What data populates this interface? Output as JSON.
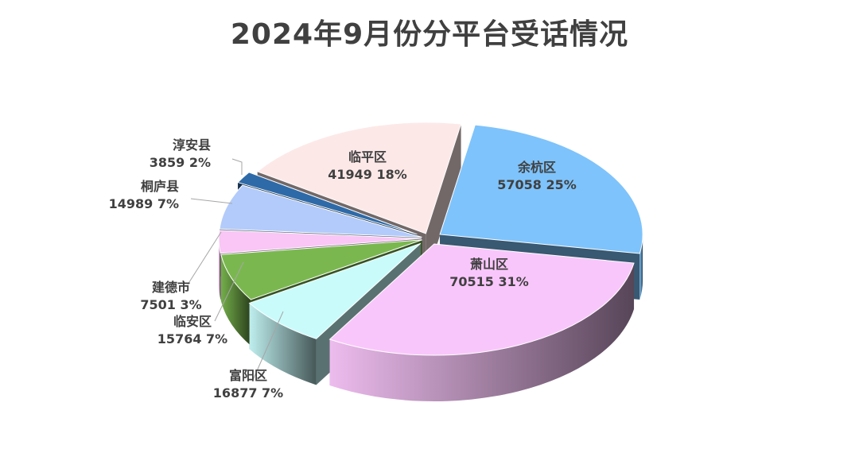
{
  "chart_data": {
    "type": "pie",
    "title": "2024年9月份分平台受话情况",
    "slices": [
      {
        "name": "余杭区",
        "value": 57058,
        "percent_label": "57058 25%",
        "color": "#7ec3fb"
      },
      {
        "name": "萧山区",
        "value": 70515,
        "percent_label": "70515 31%",
        "color": "#f9c6fb"
      },
      {
        "name": "富阳区",
        "value": 16877,
        "percent_label": "16877 7%",
        "color": "#c9fbfb"
      },
      {
        "name": "临安区",
        "value": 15764,
        "percent_label": "15764 7%",
        "color": "#7ab84f"
      },
      {
        "name": "建德市",
        "value": 7501,
        "percent_label": "7501 3%",
        "color": "#f9c6f5"
      },
      {
        "name": "桐庐县",
        "value": 14989,
        "percent_label": "14989 7%",
        "color": "#b3cbfb"
      },
      {
        "name": "淳安县",
        "value": 3859,
        "percent_label": "3859 2%",
        "color": "#2e6aa8"
      },
      {
        "name": "临平区",
        "value": 41949,
        "percent_label": "41949 18%",
        "color": "#fde8e8"
      }
    ],
    "legend": "none"
  }
}
